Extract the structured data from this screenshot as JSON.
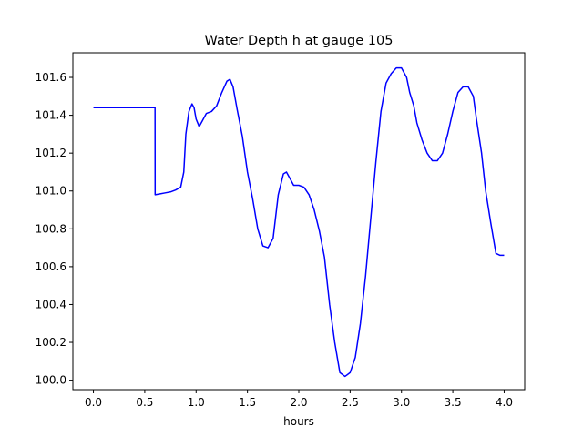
{
  "chart_data": {
    "type": "line",
    "title": "Water Depth h at gauge 105",
    "xlabel": "hours",
    "ylabel": "",
    "xlim": [
      -0.2,
      4.2
    ],
    "ylim": [
      99.95,
      101.73
    ],
    "xticks": [
      0.0,
      0.5,
      1.0,
      1.5,
      2.0,
      2.5,
      3.0,
      3.5,
      4.0
    ],
    "xtick_labels": [
      "0.0",
      "0.5",
      "1.0",
      "1.5",
      "2.0",
      "2.5",
      "3.0",
      "3.5",
      "4.0"
    ],
    "yticks": [
      100.0,
      100.2,
      100.4,
      100.6,
      100.8,
      101.0,
      101.2,
      101.4,
      101.6
    ],
    "ytick_labels": [
      "100.0",
      "100.2",
      "100.4",
      "100.6",
      "100.8",
      "101.0",
      "101.2",
      "101.4",
      "101.6"
    ],
    "grid": false,
    "series": [
      {
        "color": "#0000ff",
        "x": [
          0.0,
          0.1,
          0.2,
          0.3,
          0.4,
          0.5,
          0.55,
          0.6,
          0.601,
          0.65,
          0.7,
          0.75,
          0.8,
          0.85,
          0.88,
          0.9,
          0.93,
          0.96,
          0.98,
          1.0,
          1.03,
          1.06,
          1.1,
          1.15,
          1.2,
          1.25,
          1.3,
          1.33,
          1.36,
          1.4,
          1.45,
          1.5,
          1.55,
          1.6,
          1.65,
          1.7,
          1.75,
          1.8,
          1.85,
          1.88,
          1.92,
          1.95,
          2.0,
          2.05,
          2.1,
          2.15,
          2.2,
          2.25,
          2.3,
          2.35,
          2.4,
          2.45,
          2.5,
          2.55,
          2.6,
          2.65,
          2.7,
          2.75,
          2.8,
          2.85,
          2.9,
          2.95,
          3.0,
          3.05,
          3.08,
          3.12,
          3.15,
          3.2,
          3.25,
          3.3,
          3.35,
          3.4,
          3.45,
          3.5,
          3.55,
          3.6,
          3.65,
          3.7,
          3.73,
          3.78,
          3.82,
          3.87,
          3.92,
          3.96,
          4.0
        ],
        "y": [
          101.44,
          101.44,
          101.44,
          101.44,
          101.44,
          101.44,
          101.44,
          101.44,
          100.98,
          100.985,
          100.99,
          100.995,
          101.005,
          101.02,
          101.1,
          101.3,
          101.42,
          101.46,
          101.44,
          101.38,
          101.34,
          101.37,
          101.41,
          101.42,
          101.45,
          101.52,
          101.58,
          101.59,
          101.55,
          101.43,
          101.29,
          101.1,
          100.96,
          100.8,
          100.71,
          100.7,
          100.75,
          100.98,
          101.09,
          101.1,
          101.06,
          101.03,
          101.03,
          101.02,
          100.98,
          100.9,
          100.79,
          100.65,
          100.4,
          100.2,
          100.04,
          100.02,
          100.04,
          100.12,
          100.3,
          100.55,
          100.85,
          101.15,
          101.42,
          101.57,
          101.62,
          101.65,
          101.65,
          101.6,
          101.52,
          101.45,
          101.36,
          101.27,
          101.2,
          101.16,
          101.16,
          101.2,
          101.3,
          101.42,
          101.52,
          101.55,
          101.55,
          101.5,
          101.38,
          101.2,
          101.0,
          100.83,
          100.67,
          100.66,
          100.66
        ]
      }
    ]
  }
}
